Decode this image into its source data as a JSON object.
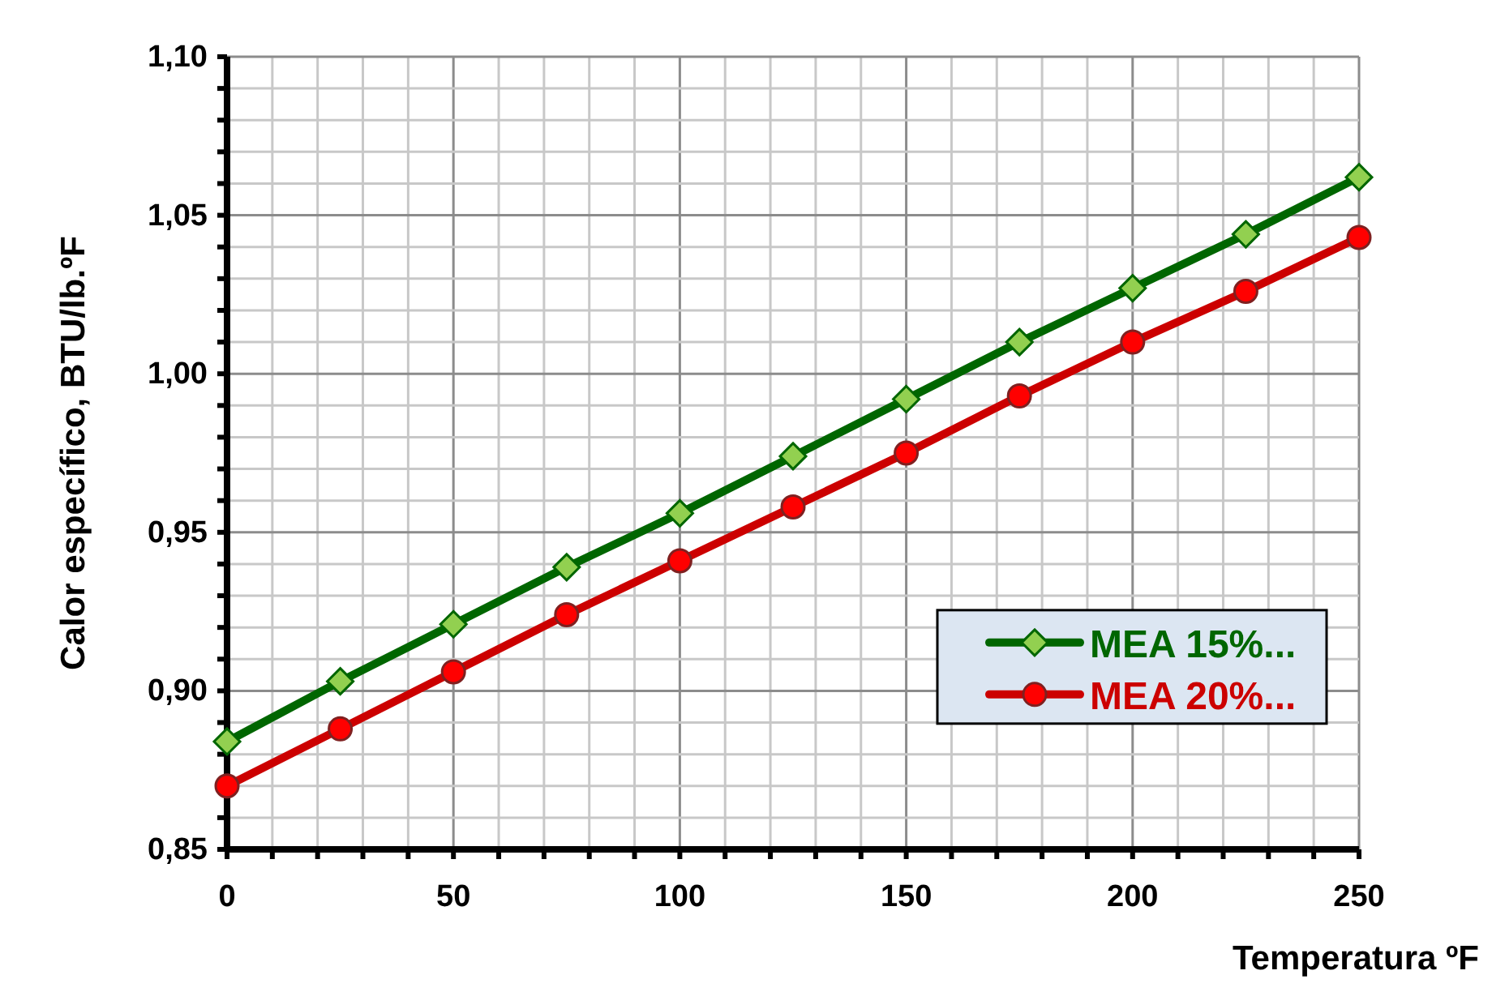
{
  "chart_data": {
    "type": "line",
    "xlabel": "Temperatura  ºF",
    "ylabel": "Calor específico, BTU/lb.ºF",
    "x": [
      0,
      25,
      50,
      75,
      100,
      125,
      150,
      175,
      200,
      225,
      250
    ],
    "xlim": [
      0,
      250
    ],
    "ylim": [
      0.85,
      1.1
    ],
    "xticks": [
      0,
      {
        "value": 10,
        "label": null
      },
      {
        "value": 20,
        "label": null
      },
      {
        "value": 30,
        "label": null
      },
      {
        "value": 40,
        "label": null
      },
      50,
      {
        "value": 60,
        "label": null
      },
      {
        "value": 70,
        "label": null
      },
      {
        "value": 80,
        "label": null
      },
      {
        "value": 90,
        "label": null
      },
      100,
      {
        "value": 110,
        "label": null
      },
      {
        "value": 120,
        "label": null
      },
      {
        "value": 130,
        "label": null
      },
      {
        "value": 140,
        "label": null
      },
      150,
      {
        "value": 160,
        "label": null
      },
      {
        "value": 170,
        "label": null
      },
      {
        "value": 180,
        "label": null
      },
      {
        "value": 190,
        "label": null
      },
      200,
      {
        "value": 210,
        "label": null
      },
      {
        "value": 220,
        "label": null
      },
      {
        "value": 230,
        "label": null
      },
      {
        "value": 240,
        "label": null
      },
      250
    ],
    "yticks": [
      {
        "value": 0.85,
        "label": "0,85"
      },
      {
        "value": 0.86,
        "label": null
      },
      {
        "value": 0.87,
        "label": null
      },
      {
        "value": 0.88,
        "label": null
      },
      {
        "value": 0.89,
        "label": null
      },
      {
        "value": 0.9,
        "label": "0,90"
      },
      {
        "value": 0.91,
        "label": null
      },
      {
        "value": 0.92,
        "label": null
      },
      {
        "value": 0.93,
        "label": null
      },
      {
        "value": 0.94,
        "label": null
      },
      {
        "value": 0.95,
        "label": "0,95"
      },
      {
        "value": 0.96,
        "label": null
      },
      {
        "value": 0.97,
        "label": null
      },
      {
        "value": 0.98,
        "label": null
      },
      {
        "value": 0.99,
        "label": null
      },
      {
        "value": 1.0,
        "label": "1,00"
      },
      {
        "value": 1.01,
        "label": null
      },
      {
        "value": 1.02,
        "label": null
      },
      {
        "value": 1.03,
        "label": null
      },
      {
        "value": 1.04,
        "label": null
      },
      {
        "value": 1.05,
        "label": "1,05"
      },
      {
        "value": 1.06,
        "label": null
      },
      {
        "value": 1.07,
        "label": null
      },
      {
        "value": 1.08,
        "label": null
      },
      {
        "value": 1.09,
        "label": null
      },
      {
        "value": 1.1,
        "label": "1,10"
      }
    ],
    "grid": true,
    "legend": "bottom right",
    "line_style": "solid",
    "series": [
      {
        "name": "MEA 15%...",
        "color": "#006600",
        "marker": "diamond",
        "values": [
          0.884,
          0.903,
          0.921,
          0.939,
          0.956,
          0.974,
          0.992,
          1.01,
          1.027,
          1.044,
          1.062
        ]
      },
      {
        "name": "MEA 20%...",
        "color": "#cc0000",
        "marker": "circle",
        "values": [
          0.87,
          0.888,
          0.906,
          0.924,
          0.941,
          0.958,
          0.975,
          0.993,
          1.01,
          1.026,
          1.043
        ]
      }
    ]
  }
}
